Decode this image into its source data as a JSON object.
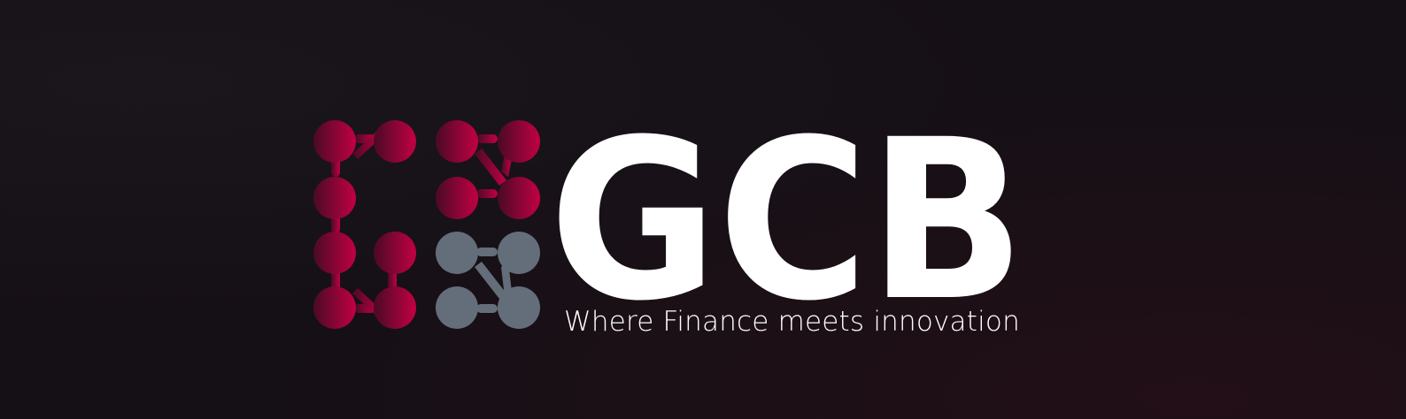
{
  "logo": {
    "wordmark": "GCB",
    "tagline": "Where Finance meets innovation"
  },
  "colors": {
    "background": "#151016",
    "accent_red": "#b8003f",
    "accent_dark": "#5a0a2a",
    "dot_gray": "#646e7a",
    "text": "#ffffff"
  },
  "icons": {
    "logo_mark": "dot-grid-logo-icon"
  }
}
